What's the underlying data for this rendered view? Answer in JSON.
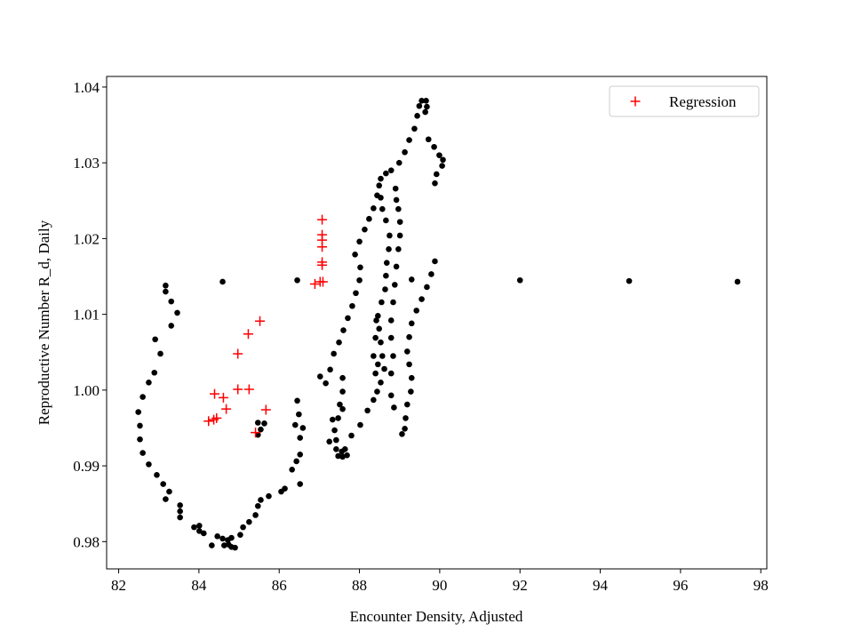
{
  "chart_data": {
    "type": "scatter",
    "xlabel": "Encounter Density, Adjusted",
    "ylabel": "Reproductive Number R_d, Daily",
    "xlim": [
      81.7,
      98.15
    ],
    "ylim": [
      0.9764,
      1.0414
    ],
    "xticks": [
      82,
      84,
      86,
      88,
      90,
      92,
      94,
      96,
      98
    ],
    "yticks": [
      0.98,
      0.99,
      {
        "value": 1,
        "label": "1.00"
      },
      1.01,
      1.02,
      1.03,
      1.04
    ],
    "legend": "upper right",
    "series": [
      {
        "color": "#000000",
        "marker": "dot",
        "x": [
          83.17,
          83.17,
          83.31,
          83.46,
          83.31,
          83.04,
          82.91,
          82.89,
          82.75,
          82.6,
          82.49,
          82.53,
          82.53,
          82.6,
          82.75,
          82.95,
          83.11,
          83.26,
          83.17,
          83.53,
          83.53,
          83.53,
          83.88,
          84.01,
          84.01,
          84.12,
          84.32,
          84.46,
          84.59,
          84.72,
          84.63,
          84.74,
          84.81,
          84.9,
          84.81,
          85.03,
          85.1,
          85.25,
          85.41,
          85.47,
          85.54,
          85.74,
          86.05,
          86.14,
          86.32,
          86.43,
          86.52,
          86.52,
          86.59,
          86.49,
          86.4,
          86.45,
          86.52,
          85.47,
          85.47,
          85.54,
          85.63,
          84.59,
          86.45,
          92.0,
          94.72,
          97.42,
          89.3,
          87.02,
          87.16,
          87.27,
          87.36,
          87.49,
          87.6,
          87.71,
          87.82,
          87.91,
          88.0,
          88.02,
          87.89,
          88.0,
          88.13,
          88.24,
          88.35,
          88.44,
          88.49,
          88.53,
          88.66,
          88.79,
          88.99,
          89.13,
          89.24,
          89.37,
          89.44,
          89.49,
          89.55,
          89.66,
          89.68,
          89.64,
          89.72,
          89.86,
          89.99,
          90.08,
          90.06,
          89.92,
          89.88,
          89.88,
          89.79,
          89.68,
          89.55,
          89.42,
          89.3,
          89.24,
          89.19,
          89.24,
          89.3,
          89.28,
          89.19,
          89.15,
          89.13,
          89.06,
          87.33,
          87.38,
          87.42,
          87.42,
          87.47,
          87.58,
          87.69,
          87.64,
          87.8,
          88.02,
          88.2,
          88.35,
          88.44,
          88.53,
          88.62,
          88.57,
          88.53,
          88.49,
          88.46,
          88.55,
          88.64,
          88.66,
          88.68,
          88.73,
          88.75,
          88.66,
          88.57,
          88.53,
          88.9,
          88.92,
          88.97,
          89.01,
          89.01,
          88.97,
          88.92,
          88.88,
          88.84,
          88.79,
          88.79,
          88.84,
          88.79,
          88.79,
          88.86,
          88.42,
          88.4,
          88.35,
          88.4,
          88.46,
          87.58,
          87.58,
          87.51,
          87.47,
          87.58,
          87.25,
          87.56
        ],
        "values": [
          1.0138,
          1.013,
          1.0117,
          1.0102,
          1.0085,
          1.0048,
          1.0067,
          1.0023,
          1.001,
          0.9991,
          0.9971,
          0.9953,
          0.9935,
          0.9917,
          0.9902,
          0.9888,
          0.9876,
          0.9866,
          0.9856,
          0.9848,
          0.984,
          0.9832,
          0.9819,
          0.9821,
          0.9814,
          0.9811,
          0.9795,
          0.9807,
          0.9804,
          0.9802,
          0.9795,
          0.9796,
          0.9793,
          0.9792,
          0.9805,
          0.9809,
          0.9819,
          0.9826,
          0.9835,
          0.9847,
          0.9855,
          0.986,
          0.9866,
          0.987,
          0.9895,
          0.9906,
          0.9915,
          0.9937,
          0.995,
          0.9968,
          0.9954,
          0.9986,
          0.9876,
          0.9957,
          0.9941,
          0.9948,
          0.9956,
          1.0143,
          1.0145,
          1.0145,
          1.0144,
          1.0143,
          1.0146,
          1.0018,
          1.0009,
          1.0027,
          1.0048,
          1.0063,
          1.0079,
          1.0095,
          1.0111,
          1.0128,
          1.0145,
          1.0162,
          1.0179,
          1.0196,
          1.0212,
          1.0226,
          1.024,
          1.0257,
          1.027,
          1.0279,
          1.0286,
          1.029,
          1.03,
          1.0314,
          1.033,
          1.0345,
          1.0362,
          1.0375,
          1.0382,
          1.0382,
          1.0374,
          1.0367,
          1.0331,
          1.0321,
          1.031,
          1.0304,
          1.0296,
          1.0285,
          1.0273,
          1.017,
          1.0153,
          1.0136,
          1.012,
          1.0105,
          1.0088,
          1.007,
          1.0051,
          1.0034,
          1.0016,
          0.9998,
          0.9981,
          0.9963,
          0.9949,
          0.9942,
          0.9961,
          0.9947,
          0.9934,
          0.9922,
          0.9913,
          0.9912,
          0.9914,
          0.9922,
          0.994,
          0.9954,
          0.9973,
          0.9987,
          0.9998,
          1.001,
          1.0028,
          1.0045,
          1.0063,
          1.0081,
          1.0098,
          1.0116,
          1.0133,
          1.0151,
          1.0168,
          1.0186,
          1.0204,
          1.0224,
          1.0239,
          1.0254,
          1.0266,
          1.0251,
          1.0239,
          1.0222,
          1.0204,
          1.0186,
          1.0163,
          1.0139,
          1.0116,
          1.0092,
          1.0069,
          1.0045,
          1.0022,
          0.9993,
          0.9977,
          1.0092,
          1.0069,
          1.0045,
          1.0022,
          1.0034,
          1.0016,
          0.9998,
          0.9981,
          0.9963,
          0.9975,
          0.9932,
          0.9919
        ]
      },
      {
        "name": "Regression",
        "color": "#ff0000",
        "marker": "plus",
        "x": [
          87.07,
          87.07,
          87.07,
          87.07,
          87.07,
          87.07,
          87.02,
          86.89,
          87.09,
          85.52,
          85.23,
          84.97,
          84.97,
          85.25,
          84.39,
          84.61,
          84.68,
          85.67,
          84.24,
          84.44,
          84.37,
          85.41
        ],
        "values": [
          1.0225,
          1.0205,
          1.0198,
          1.0189,
          1.0169,
          1.0165,
          1.0143,
          1.014,
          1.0143,
          1.0091,
          1.0074,
          1.0048,
          1.0001,
          1.0001,
          0.9995,
          0.999,
          0.9975,
          0.9974,
          0.9959,
          0.9963,
          0.9961,
          0.9944
        ]
      }
    ]
  }
}
